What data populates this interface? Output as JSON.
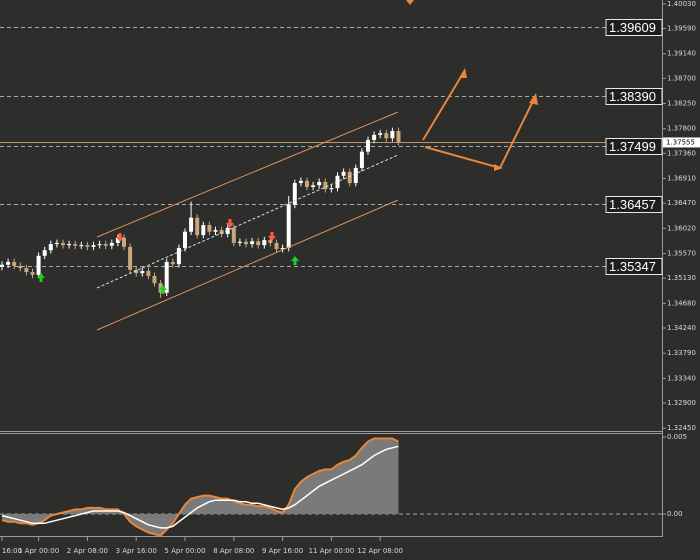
{
  "chart_data": [
    {
      "type": "candlestick",
      "categories": [
        "16:00",
        null,
        null,
        null,
        null,
        null,
        "1 Apr 00:00",
        null,
        null,
        null,
        null,
        null,
        null,
        null,
        "2 Apr 08:00",
        null,
        null,
        null,
        null,
        null,
        null,
        null,
        "3 Apr 16:00",
        null,
        null,
        null,
        null,
        null,
        null,
        null,
        "5 Apr 00:00",
        null,
        null,
        null,
        null,
        null,
        null,
        null,
        "8 Apr 08:00",
        null,
        null,
        null,
        null,
        null,
        null,
        null,
        "9 Apr 16:00",
        null,
        null,
        null,
        null,
        null,
        null,
        null,
        "11 Apr 00:00",
        null,
        null,
        null,
        null,
        null,
        null,
        null,
        "12 Apr 08:00",
        null,
        null,
        null
      ],
      "open": [
        1.3533,
        1.3537,
        1.3542,
        1.3535,
        1.3531,
        1.3524,
        1.3519,
        1.3553,
        1.3563,
        1.3574,
        1.3576,
        1.3572,
        1.3574,
        1.3571,
        1.3572,
        1.3569,
        1.3572,
        1.3574,
        1.3571,
        1.3576,
        1.3585,
        1.3569,
        1.3528,
        1.3522,
        1.3526,
        1.3517,
        1.3504,
        1.3487,
        1.3542,
        1.3538,
        1.3567,
        1.3596,
        1.3621,
        1.359,
        1.3608,
        1.3596,
        1.3599,
        1.3592,
        1.3603,
        1.3576,
        1.3578,
        1.3574,
        1.3579,
        1.3572,
        1.3581,
        1.3576,
        1.3565,
        1.3567,
        1.3644,
        1.3683,
        1.3687,
        1.3676,
        1.3679,
        1.3685,
        1.3672,
        1.3674,
        1.3696,
        1.3703,
        1.3683,
        1.371,
        1.3739,
        1.376,
        1.3769,
        1.3772,
        1.3763,
        1.3776
      ],
      "high": [
        1.3543,
        1.3548,
        1.3548,
        1.3541,
        1.3537,
        1.353,
        1.3559,
        1.3569,
        1.358,
        1.3582,
        1.3582,
        1.358,
        1.358,
        1.3578,
        1.3578,
        1.3578,
        1.358,
        1.358,
        1.3582,
        1.3591,
        1.3591,
        1.3575,
        1.3534,
        1.3532,
        1.3532,
        1.3523,
        1.351,
        1.3548,
        1.3548,
        1.3573,
        1.3602,
        1.365,
        1.3627,
        1.3614,
        1.3614,
        1.3605,
        1.3605,
        1.3609,
        1.3609,
        1.3584,
        1.3584,
        1.3585,
        1.3585,
        1.3587,
        1.3587,
        1.3582,
        1.3573,
        1.366,
        1.3689,
        1.3693,
        1.3693,
        1.3685,
        1.3691,
        1.3691,
        1.368,
        1.3702,
        1.3709,
        1.3709,
        1.3716,
        1.3745,
        1.3766,
        1.3775,
        1.3778,
        1.3778,
        1.3782,
        1.3782
      ],
      "low": [
        1.3527,
        1.3531,
        1.3529,
        1.3525,
        1.3518,
        1.3513,
        1.3513,
        1.3547,
        1.3557,
        1.3568,
        1.3566,
        1.3566,
        1.3565,
        1.3565,
        1.3563,
        1.3563,
        1.3566,
        1.3565,
        1.3565,
        1.357,
        1.3563,
        1.3522,
        1.3516,
        1.3516,
        1.3511,
        1.3498,
        1.3478,
        1.3481,
        1.3532,
        1.3532,
        1.3561,
        1.359,
        1.3584,
        1.3584,
        1.359,
        1.359,
        1.3586,
        1.3586,
        1.357,
        1.357,
        1.3568,
        1.3568,
        1.3566,
        1.3566,
        1.357,
        1.3559,
        1.3559,
        1.3561,
        1.3638,
        1.3677,
        1.367,
        1.367,
        1.3673,
        1.3666,
        1.3666,
        1.3668,
        1.369,
        1.3677,
        1.3677,
        1.3704,
        1.3733,
        1.3754,
        1.3763,
        1.3757,
        1.3757,
        1.375
      ],
      "close": [
        1.3537,
        1.3542,
        1.3535,
        1.3531,
        1.3524,
        1.3519,
        1.3553,
        1.3563,
        1.3574,
        1.3576,
        1.3572,
        1.3574,
        1.3571,
        1.3572,
        1.3569,
        1.3572,
        1.3574,
        1.3571,
        1.3576,
        1.3585,
        1.3569,
        1.3528,
        1.3522,
        1.3526,
        1.3517,
        1.3504,
        1.3487,
        1.3542,
        1.3538,
        1.3567,
        1.3596,
        1.3621,
        1.359,
        1.3608,
        1.3596,
        1.3599,
        1.3592,
        1.3603,
        1.3576,
        1.3578,
        1.3574,
        1.3579,
        1.3572,
        1.3581,
        1.3576,
        1.3565,
        1.3567,
        1.3644,
        1.3683,
        1.3687,
        1.3676,
        1.3679,
        1.3685,
        1.3672,
        1.3674,
        1.3696,
        1.3703,
        1.3683,
        1.371,
        1.3739,
        1.376,
        1.3769,
        1.3772,
        1.3763,
        1.3776,
        1.3756
      ],
      "up_color": "#ffffff",
      "down_color": "#c9a77c",
      "ylim": [
        1.324,
        1.401
      ],
      "yticks": [
        {
          "value": 1.4003,
          "label": "1.40030"
        },
        {
          "value": 1.3959,
          "label": "1.39590"
        },
        {
          "value": 1.3914,
          "label": "1.39140"
        },
        {
          "value": 1.387,
          "label": "1.38700"
        },
        {
          "value": 1.3825,
          "label": "1.38250"
        },
        {
          "value": 1.378,
          "label": "1.37800"
        },
        {
          "value": 1.3736,
          "label": "1.37360"
        },
        {
          "value": 1.3691,
          "label": "1.36910"
        },
        {
          "value": 1.3647,
          "label": "1.36470"
        },
        {
          "value": 1.3602,
          "label": "1.36020"
        },
        {
          "value": 1.3557,
          "label": "1.35570"
        },
        {
          "value": 1.3513,
          "label": "1.35130"
        },
        {
          "value": 1.3468,
          "label": "1.34680"
        },
        {
          "value": 1.3424,
          "label": "1.34240"
        },
        {
          "value": 1.3379,
          "label": "1.33790"
        },
        {
          "value": 1.3334,
          "label": "1.33340"
        },
        {
          "value": 1.329,
          "label": "1.32900"
        },
        {
          "value": 1.3245,
          "label": "1.32450"
        }
      ],
      "levels": [
        {
          "value": 1.39609,
          "label": "1.39609"
        },
        {
          "value": 1.3839,
          "label": "1.38390"
        },
        {
          "value": 1.37499,
          "label": "1.37499"
        },
        {
          "value": 1.36457,
          "label": "1.36457"
        },
        {
          "value": 1.35347,
          "label": "1.35347"
        }
      ],
      "last_price": {
        "value": 1.37555,
        "label": "1.37555"
      }
    },
    {
      "type": "line",
      "series": [
        {
          "color": "#e8863a",
          "fill": "#7a7a7a",
          "values": [
            -0.0004,
            -0.0005,
            -0.0005,
            -0.0006,
            -0.0006,
            -0.0007,
            -0.0006,
            -0.0004,
            -0.0001,
            0,
            0.0001,
            0.0002,
            0.0003,
            0.0003,
            0.0004,
            0.0004,
            0.0004,
            0.0003,
            0.0003,
            0.0003,
            0,
            -0.0005,
            -0.0008,
            -0.001,
            -0.0012,
            -0.0013,
            -0.0014,
            -0.001,
            -0.0006,
            0,
            0.0006,
            0.001,
            0.0011,
            0.0012,
            0.0012,
            0.0011,
            0.001,
            0.001,
            0.0008,
            0.0007,
            0.0006,
            0.0006,
            0.0005,
            0.0005,
            0.0004,
            0.0002,
            0.0001,
            0.0006,
            0.0016,
            0.0021,
            0.0024,
            0.0026,
            0.0028,
            0.0029,
            0.0029,
            0.0032,
            0.0034,
            0.0035,
            0.0038,
            0.0043,
            0.0047,
            0.0049,
            0.0049,
            0.0049,
            0.0049,
            0.0047
          ]
        },
        {
          "color": "#ffffff",
          "values": [
            -0.0001,
            -0.0002,
            -0.0003,
            -0.0004,
            -0.0005,
            -0.0006,
            -0.0006,
            -0.0006,
            -0.0005,
            -0.0004,
            -0.0003,
            -0.0002,
            -0.0001,
            0,
            0.0001,
            0.0002,
            0.0002,
            0.0002,
            0.0002,
            0.0002,
            0.0001,
            -0.0001,
            -0.0003,
            -0.0005,
            -0.0007,
            -0.0008,
            -0.0009,
            -0.0009,
            -0.0008,
            -0.0005,
            -0.0002,
            0.0001,
            0.0004,
            0.0006,
            0.0008,
            0.0009,
            0.0009,
            0.0009,
            0.0009,
            0.0008,
            0.0008,
            0.0007,
            0.0007,
            0.0006,
            0.0005,
            0.0004,
            0.0003,
            0.0004,
            0.0006,
            0.0009,
            0.0012,
            0.0015,
            0.0018,
            0.002,
            0.0022,
            0.0024,
            0.0026,
            0.0028,
            0.003,
            0.0032,
            0.0035,
            0.0038,
            0.004,
            0.0042,
            0.0043,
            0.0044
          ]
        }
      ],
      "ylim": [
        -0.00136,
        0.00526
      ],
      "yticks": [
        0.005,
        {
          "value": 0,
          "label": "0.00"
        }
      ]
    }
  ]
}
